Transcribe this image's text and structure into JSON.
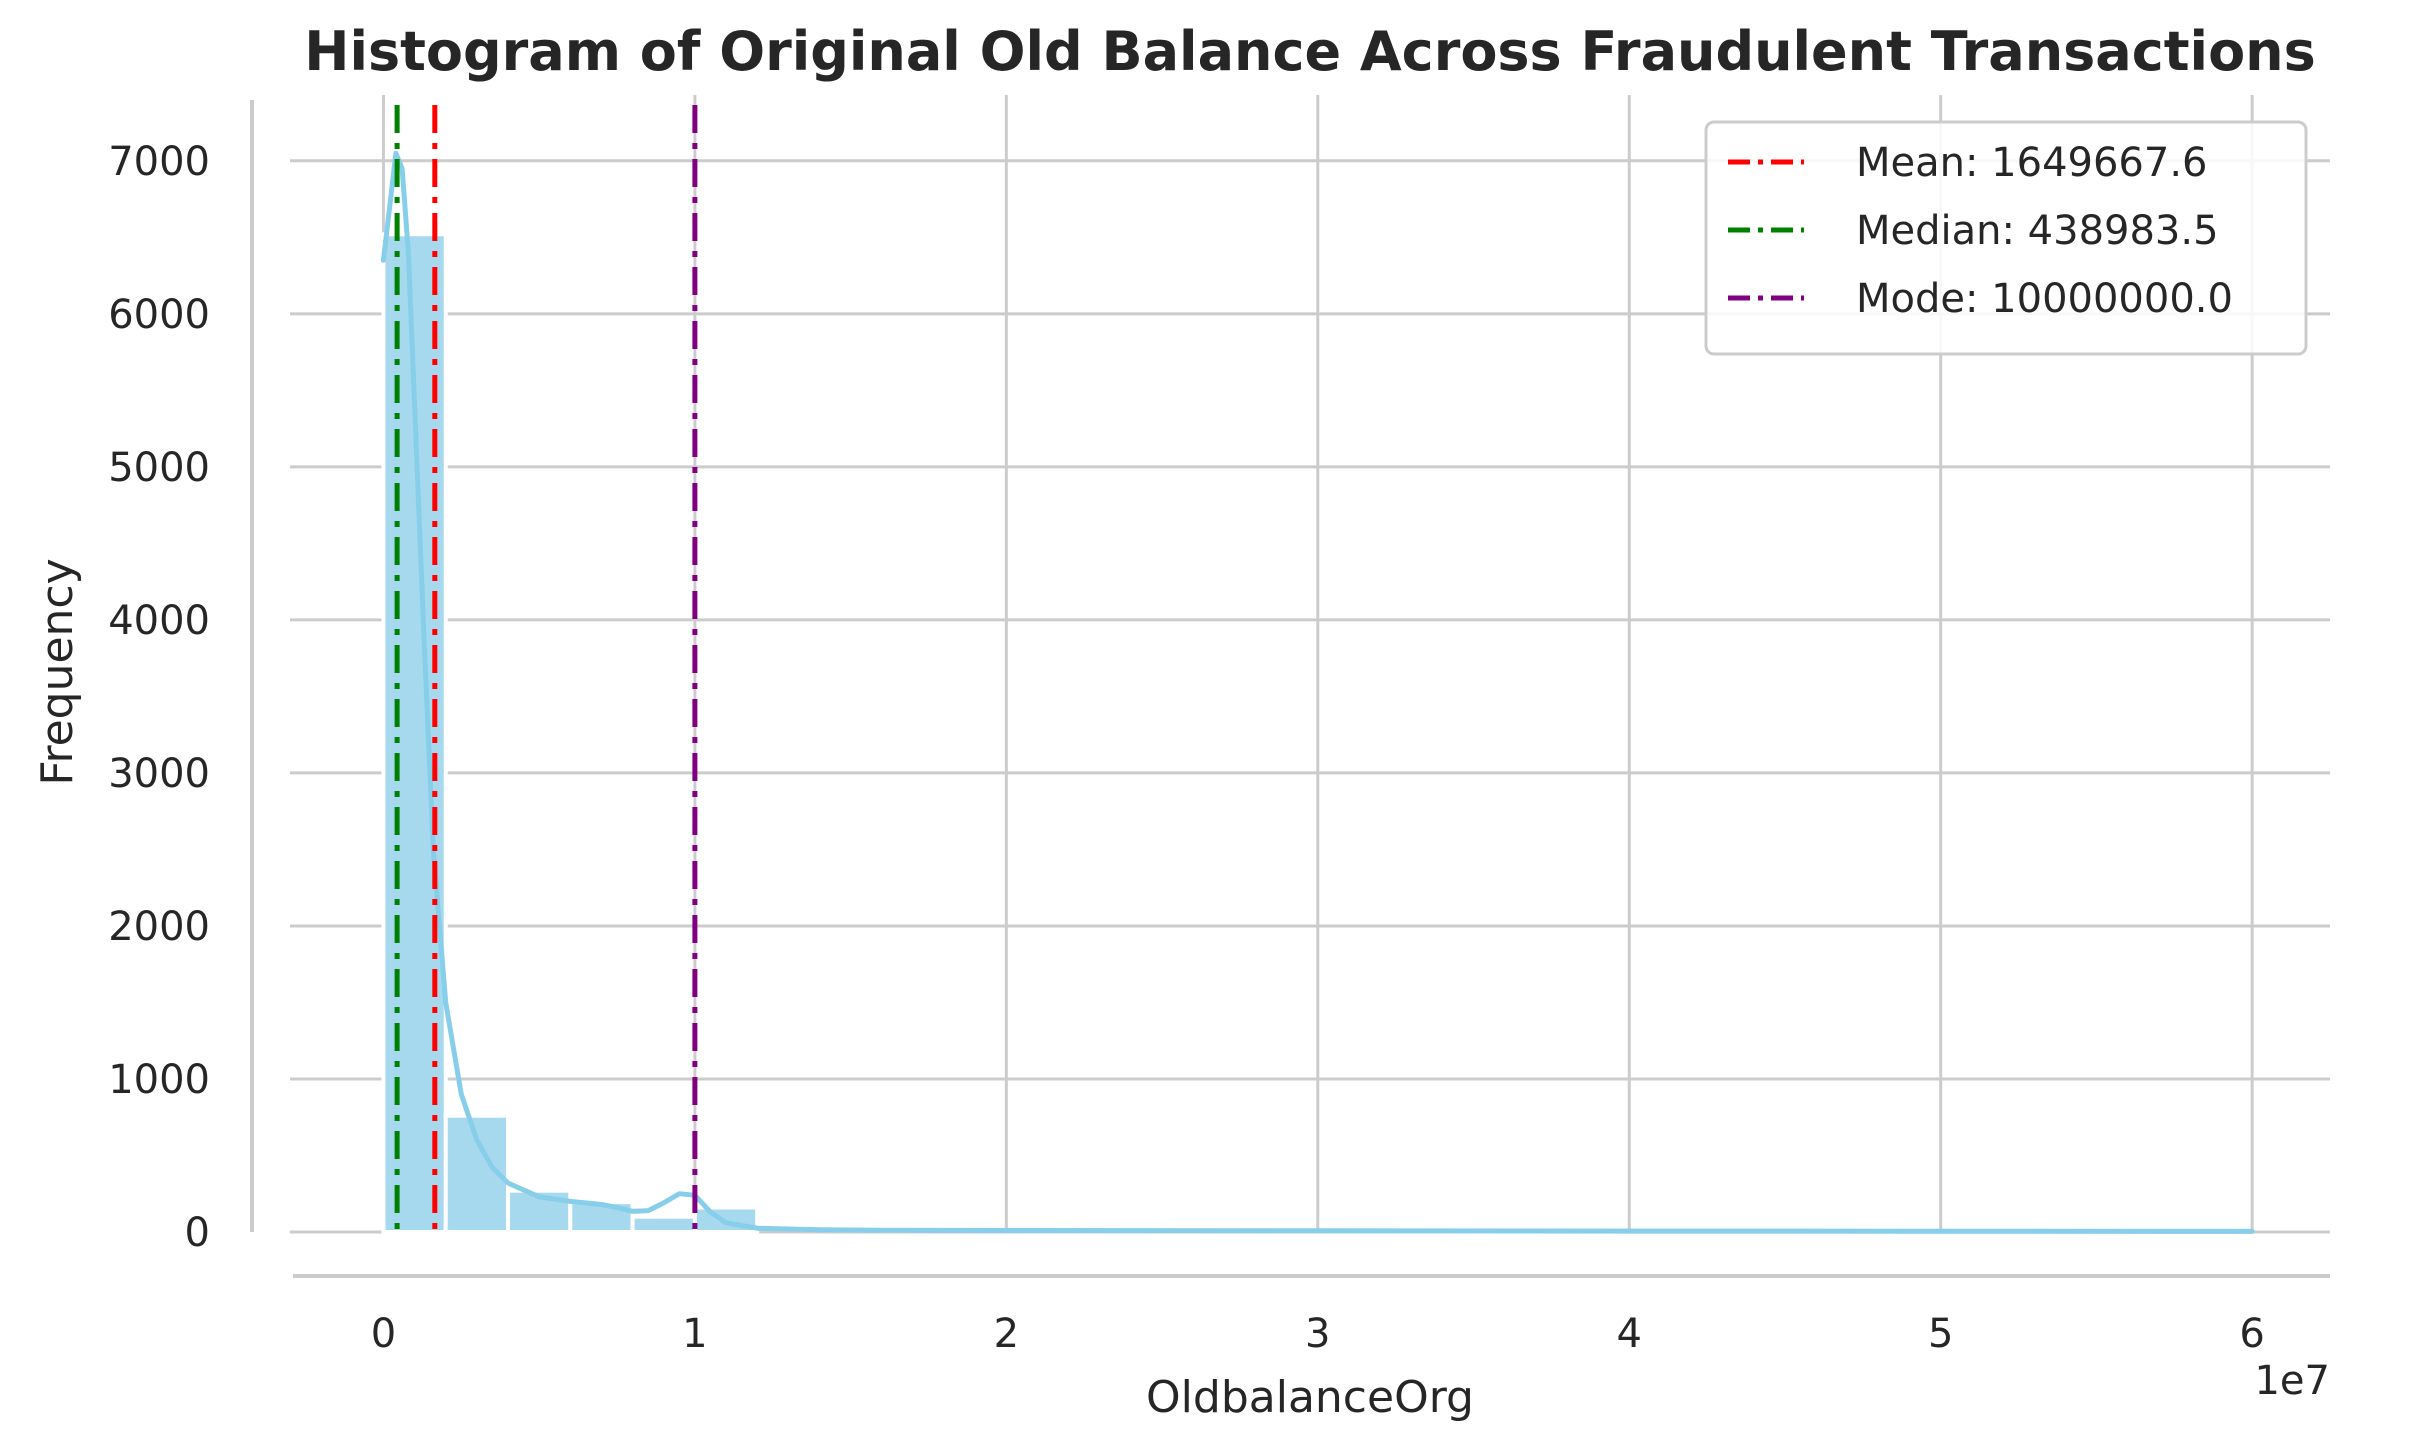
{
  "chart_data": {
    "type": "bar",
    "title": "Histogram of Original Old Balance Across Fraudulent Transactions",
    "xlabel": "OldbalanceOrg",
    "ylabel": "Frequency",
    "x_offset_label": "1e7",
    "xlim": [
      -0.3,
      6.25
    ],
    "ylim": [
      0,
      7430
    ],
    "x_ticks": [
      0,
      1,
      2,
      3,
      4,
      5,
      6
    ],
    "x_tick_labels": [
      "0",
      "1",
      "2",
      "3",
      "4",
      "5",
      "6"
    ],
    "y_ticks": [
      0,
      1000,
      2000,
      3000,
      4000,
      5000,
      6000,
      7000
    ],
    "y_tick_labels": [
      "0",
      "1000",
      "2000",
      "3000",
      "4000",
      "5000",
      "6000",
      "7000"
    ],
    "grid": true,
    "bins": [
      {
        "start": 0.0,
        "end": 0.2,
        "count": 6520
      },
      {
        "start": 0.2,
        "end": 0.4,
        "count": 760
      },
      {
        "start": 0.4,
        "end": 0.6,
        "count": 270
      },
      {
        "start": 0.6,
        "end": 0.8,
        "count": 195
      },
      {
        "start": 0.8,
        "end": 1.0,
        "count": 100
      },
      {
        "start": 1.0,
        "end": 1.2,
        "count": 160
      }
    ],
    "kde": {
      "x": [
        0.0,
        0.02,
        0.04,
        0.06,
        0.08,
        0.1,
        0.13,
        0.16,
        0.2,
        0.25,
        0.3,
        0.35,
        0.4,
        0.5,
        0.6,
        0.7,
        0.75,
        0.8,
        0.85,
        0.9,
        0.95,
        1.0,
        1.05,
        1.1,
        1.2,
        1.4,
        1.6,
        2.0,
        3.0,
        4.0,
        5.0,
        6.0
      ],
      "y": [
        6350,
        6700,
        7050,
        6950,
        6400,
        5400,
        3900,
        2500,
        1500,
        900,
        600,
        420,
        320,
        230,
        200,
        180,
        160,
        135,
        140,
        190,
        250,
        240,
        130,
        60,
        25,
        15,
        12,
        10,
        8,
        6,
        5,
        4
      ]
    },
    "vlines": [
      {
        "label": "Mean: 1649667.6",
        "value": 0.16496676,
        "color": "#ff0000"
      },
      {
        "label": "Median: 438983.5",
        "value": 0.04389835,
        "color": "#008000"
      },
      {
        "label": "Mode: 10000000.0",
        "value": 1.0,
        "color": "#800080"
      }
    ],
    "legend_position": "top-right",
    "bar_color": "#a6d9ee",
    "kde_color": "#87ceeb"
  }
}
